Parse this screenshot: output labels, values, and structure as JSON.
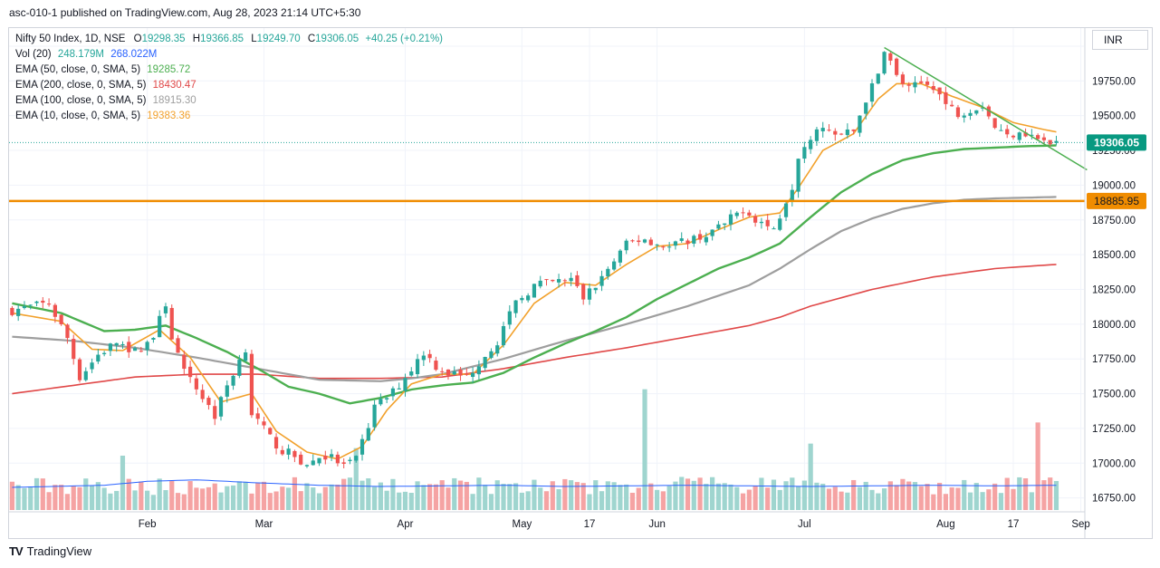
{
  "header": {
    "published": "asc-010-1 published on TradingView.com, Aug 28, 2023 21:14 UTC+5:30"
  },
  "legend": {
    "symbol": "Nifty 50 Index, 1D, NSE",
    "ohlc": {
      "o_label": "O",
      "o": "19298.35",
      "h_label": "H",
      "h": "19366.85",
      "l_label": "L",
      "l": "19249.70",
      "c_label": "C",
      "c": "19306.05",
      "change": "+40.25 (+0.21%)"
    },
    "vol": {
      "label": "Vol (20)",
      "v1": "248.179M",
      "v2": "268.022M"
    },
    "emas": [
      {
        "label": "EMA (50, close, 0, SMA, 5)",
        "value": "19285.72",
        "color": "#4caf50"
      },
      {
        "label": "EMA (200, close, 0, SMA, 5)",
        "value": "18430.47",
        "color": "#e04848"
      },
      {
        "label": "EMA (100, close, 0, SMA, 5)",
        "value": "18915.30",
        "color": "#9e9e9e"
      },
      {
        "label": "EMA (10, close, 0, SMA, 5)",
        "value": "19383.36",
        "color": "#f2a12c"
      }
    ]
  },
  "currency": "INR",
  "footer": {
    "brand": "TradingView",
    "logo": "TV"
  },
  "colors": {
    "up": "#26a69a",
    "down": "#ef5350",
    "vol_up": "#9fd5cf",
    "vol_down": "#f5a3a3",
    "ema10": "#f2a12c",
    "ema50": "#4caf50",
    "ema100": "#9e9e9e",
    "ema200": "#e04848",
    "trendline": "#4caf50",
    "support": "#f08c00"
  },
  "chart_data": {
    "type": "candlestick",
    "y_axis": {
      "min": 16650,
      "max": 20130,
      "ticks": [
        20000,
        19750,
        19500,
        19250,
        19000,
        18750,
        18500,
        18250,
        18000,
        17750,
        17500,
        17250,
        17000,
        16750
      ],
      "tick_labels": [
        "20000.00",
        "19750.00",
        "19500.00",
        "19250.00",
        "19000.00",
        "18750.00",
        "18500.00",
        "18250.00",
        "18000.00",
        "17750.00",
        "17500.00",
        "17250.00",
        "17000.00",
        "16750.00"
      ]
    },
    "x_axis": {
      "labels": [
        {
          "text": "Feb",
          "day": 22
        },
        {
          "text": "Mar",
          "day": 41
        },
        {
          "text": "Apr",
          "day": 64
        },
        {
          "text": "May",
          "day": 83
        },
        {
          "text": "17",
          "day": 94
        },
        {
          "text": "Jun",
          "day": 105
        },
        {
          "text": "Jul",
          "day": 129
        },
        {
          "text": "Aug",
          "day": 152
        },
        {
          "text": "17",
          "day": 163
        },
        {
          "text": "Sep",
          "day": 174
        }
      ]
    },
    "last_price": {
      "value": 19306.05,
      "label": "19306.05"
    },
    "support_level": {
      "value": 18885.95,
      "label": "18885.95"
    },
    "trendline": {
      "from": {
        "day": 142,
        "price": 19990
      },
      "to": {
        "day": 170,
        "price": 19250
      }
    },
    "anchors": [
      [
        0,
        18100
      ],
      [
        6,
        18150
      ],
      [
        9,
        17900
      ],
      [
        11,
        17620
      ],
      [
        14,
        17780
      ],
      [
        17,
        17870
      ],
      [
        20,
        17800
      ],
      [
        23,
        17910
      ],
      [
        25,
        18150
      ],
      [
        26,
        17910
      ],
      [
        28,
        17650
      ],
      [
        31,
        17480
      ],
      [
        33,
        17340
      ],
      [
        35,
        17560
      ],
      [
        37,
        17740
      ],
      [
        38,
        17830
      ],
      [
        39,
        17360
      ],
      [
        42,
        17180
      ],
      [
        44,
        17090
      ],
      [
        46,
        17050
      ],
      [
        48,
        16980
      ],
      [
        50,
        17050
      ],
      [
        52,
        17040
      ],
      [
        54,
        16980
      ],
      [
        56,
        17020
      ],
      [
        59,
        17400
      ],
      [
        62,
        17510
      ],
      [
        64,
        17620
      ],
      [
        67,
        17800
      ],
      [
        69,
        17700
      ],
      [
        71,
        17650
      ],
      [
        74,
        17620
      ],
      [
        77,
        17780
      ],
      [
        79,
        17880
      ],
      [
        82,
        18150
      ],
      [
        85,
        18280
      ],
      [
        88,
        18300
      ],
      [
        91,
        18320
      ],
      [
        93,
        18190
      ],
      [
        95,
        18280
      ],
      [
        98,
        18450
      ],
      [
        100,
        18570
      ],
      [
        103,
        18620
      ],
      [
        105,
        18580
      ],
      [
        107,
        18550
      ],
      [
        110,
        18610
      ],
      [
        113,
        18640
      ],
      [
        116,
        18720
      ],
      [
        119,
        18830
      ],
      [
        121,
        18760
      ],
      [
        124,
        18680
      ],
      [
        127,
        19000
      ],
      [
        128,
        19220
      ],
      [
        131,
        19430
      ],
      [
        134,
        19350
      ],
      [
        137,
        19390
      ],
      [
        139,
        19620
      ],
      [
        141,
        19790
      ],
      [
        142,
        19990
      ],
      [
        144,
        19780
      ],
      [
        146,
        19690
      ],
      [
        148,
        19730
      ],
      [
        150,
        19720
      ],
      [
        152,
        19580
      ],
      [
        154,
        19520
      ],
      [
        156,
        19550
      ],
      [
        158,
        19580
      ],
      [
        160,
        19420
      ],
      [
        162,
        19350
      ],
      [
        164,
        19400
      ],
      [
        166,
        19350
      ],
      [
        168,
        19330
      ],
      [
        169,
        19270
      ],
      [
        170,
        19306
      ]
    ],
    "ema_lines": {
      "ema10": [
        [
          0,
          18080
        ],
        [
          8,
          18020
        ],
        [
          13,
          17820
        ],
        [
          18,
          17810
        ],
        [
          24,
          17960
        ],
        [
          29,
          17760
        ],
        [
          34,
          17440
        ],
        [
          39,
          17500
        ],
        [
          43,
          17230
        ],
        [
          48,
          17080
        ],
        [
          53,
          17030
        ],
        [
          57,
          17120
        ],
        [
          61,
          17380
        ],
        [
          65,
          17570
        ],
        [
          70,
          17640
        ],
        [
          75,
          17640
        ],
        [
          80,
          17850
        ],
        [
          85,
          18150
        ],
        [
          90,
          18300
        ],
        [
          95,
          18280
        ],
        [
          100,
          18430
        ],
        [
          105,
          18560
        ],
        [
          110,
          18580
        ],
        [
          115,
          18680
        ],
        [
          120,
          18770
        ],
        [
          125,
          18800
        ],
        [
          128,
          18980
        ],
        [
          132,
          19250
        ],
        [
          137,
          19370
        ],
        [
          141,
          19620
        ],
        [
          144,
          19730
        ],
        [
          148,
          19730
        ],
        [
          153,
          19640
        ],
        [
          158,
          19560
        ],
        [
          163,
          19450
        ],
        [
          168,
          19400
        ],
        [
          170,
          19383
        ]
      ],
      "ema50": [
        [
          0,
          18150
        ],
        [
          8,
          18080
        ],
        [
          15,
          17950
        ],
        [
          20,
          17960
        ],
        [
          25,
          17990
        ],
        [
          30,
          17900
        ],
        [
          35,
          17800
        ],
        [
          40,
          17680
        ],
        [
          45,
          17550
        ],
        [
          50,
          17500
        ],
        [
          55,
          17430
        ],
        [
          60,
          17470
        ],
        [
          65,
          17530
        ],
        [
          70,
          17560
        ],
        [
          75,
          17580
        ],
        [
          80,
          17650
        ],
        [
          85,
          17760
        ],
        [
          90,
          17860
        ],
        [
          95,
          17950
        ],
        [
          100,
          18050
        ],
        [
          105,
          18180
        ],
        [
          110,
          18290
        ],
        [
          115,
          18400
        ],
        [
          120,
          18480
        ],
        [
          125,
          18580
        ],
        [
          130,
          18770
        ],
        [
          135,
          18950
        ],
        [
          140,
          19080
        ],
        [
          145,
          19180
        ],
        [
          150,
          19230
        ],
        [
          155,
          19260
        ],
        [
          160,
          19270
        ],
        [
          165,
          19280
        ],
        [
          170,
          19286
        ]
      ],
      "ema100": [
        [
          0,
          17910
        ],
        [
          10,
          17880
        ],
        [
          20,
          17830
        ],
        [
          30,
          17760
        ],
        [
          40,
          17680
        ],
        [
          50,
          17600
        ],
        [
          60,
          17590
        ],
        [
          65,
          17610
        ],
        [
          70,
          17640
        ],
        [
          80,
          17750
        ],
        [
          90,
          17880
        ],
        [
          100,
          18000
        ],
        [
          110,
          18130
        ],
        [
          120,
          18280
        ],
        [
          125,
          18400
        ],
        [
          130,
          18540
        ],
        [
          135,
          18670
        ],
        [
          140,
          18760
        ],
        [
          145,
          18830
        ],
        [
          150,
          18870
        ],
        [
          155,
          18895
        ],
        [
          160,
          18905
        ],
        [
          165,
          18910
        ],
        [
          170,
          18915
        ]
      ],
      "ema200": [
        [
          0,
          17500
        ],
        [
          10,
          17560
        ],
        [
          20,
          17620
        ],
        [
          30,
          17640
        ],
        [
          40,
          17640
        ],
        [
          50,
          17610
        ],
        [
          60,
          17610
        ],
        [
          70,
          17620
        ],
        [
          80,
          17680
        ],
        [
          90,
          17760
        ],
        [
          100,
          17830
        ],
        [
          110,
          17910
        ],
        [
          120,
          17990
        ],
        [
          125,
          18050
        ],
        [
          130,
          18130
        ],
        [
          140,
          18250
        ],
        [
          150,
          18340
        ],
        [
          160,
          18400
        ],
        [
          170,
          18430
        ]
      ]
    },
    "volume": {
      "min": 0,
      "max": 420,
      "avg": [
        [
          0,
          75
        ],
        [
          15,
          82
        ],
        [
          22,
          95
        ],
        [
          30,
          100
        ],
        [
          40,
          90
        ],
        [
          50,
          82
        ],
        [
          60,
          78
        ],
        [
          70,
          80
        ],
        [
          80,
          82
        ],
        [
          90,
          78
        ],
        [
          100,
          80
        ],
        [
          110,
          82
        ],
        [
          120,
          80
        ],
        [
          130,
          78
        ],
        [
          140,
          80
        ],
        [
          150,
          82
        ],
        [
          160,
          80
        ],
        [
          170,
          82
        ]
      ],
      "spikes": [
        {
          "day": 103,
          "value": 400
        },
        {
          "day": 130,
          "value": 220
        },
        {
          "day": 167,
          "value": 290
        },
        {
          "day": 18,
          "value": 180
        },
        {
          "day": 56,
          "value": 205
        }
      ]
    }
  }
}
